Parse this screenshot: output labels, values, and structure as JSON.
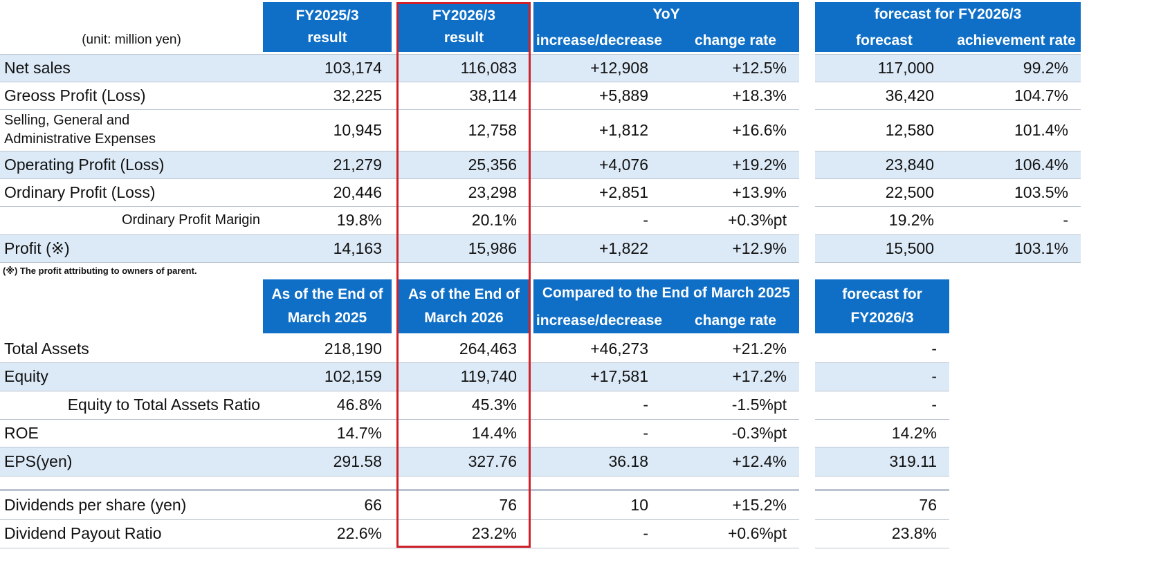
{
  "top_table": {
    "unit_label": "(unit: million yen)",
    "headers": {
      "prev_line1": "FY2025/3",
      "prev_line2": "result",
      "curr_line1": "FY2026/3",
      "curr_line2": "result",
      "yoy_title": "YoY",
      "yoy_inc": "increase/decrease",
      "yoy_rate": "change rate",
      "fc_title": "forecast for FY2026/3",
      "fc_forecast": "forecast",
      "fc_achieve": "achievement rate"
    },
    "rows": [
      {
        "label": "Net sales",
        "prev": "103,174",
        "curr": "116,083",
        "inc": "+12,908",
        "rate": "+12.5%",
        "forecast": "117,000",
        "achieve": "99.2%"
      },
      {
        "label": "Greoss Profit (Loss)",
        "prev": "32,225",
        "curr": "38,114",
        "inc": "+5,889",
        "rate": "+18.3%",
        "forecast": "36,420",
        "achieve": "104.7%"
      },
      {
        "label_line1": "Selling, General and",
        "label_line2": "Administrative Expenses",
        "prev": "10,945",
        "curr": "12,758",
        "inc": "+1,812",
        "rate": "+16.6%",
        "forecast": "12,580",
        "achieve": "101.4%"
      },
      {
        "label": "Operating Profit (Loss)",
        "prev": "21,279",
        "curr": "25,356",
        "inc": "+4,076",
        "rate": "+19.2%",
        "forecast": "23,840",
        "achieve": "106.4%"
      },
      {
        "label": "Ordinary Profit (Loss)",
        "prev": "20,446",
        "curr": "23,298",
        "inc": "+2,851",
        "rate": "+13.9%",
        "forecast": "22,500",
        "achieve": "103.5%"
      },
      {
        "label": "Ordinary Profit Marigin",
        "prev": "19.8%",
        "curr": "20.1%",
        "inc": "-",
        "rate": "+0.3%pt",
        "forecast": "19.2%",
        "achieve": "-"
      },
      {
        "label": "Profit (※)",
        "prev": "14,163",
        "curr": "15,986",
        "inc": "+1,822",
        "rate": "+12.9%",
        "forecast": "15,500",
        "achieve": "103.1%"
      }
    ],
    "footnote": "(※) The profit attributing to owners of parent."
  },
  "bottom_table": {
    "headers": {
      "prev_line1": "As of the End of",
      "prev_line2": "March 2025",
      "curr_line1": "As of the End of",
      "curr_line2": "March 2026",
      "cmp_title": "Compared to the End of March 2025",
      "cmp_inc": "increase/decrease",
      "cmp_rate": "change rate",
      "fc_line1": "forecast for",
      "fc_line2": "FY2026/3"
    },
    "rows": [
      {
        "label": "Total Assets",
        "prev": "218,190",
        "curr": "264,463",
        "inc": "+46,273",
        "rate": "+21.2%",
        "forecast": "-"
      },
      {
        "label": "Equity",
        "prev": "102,159",
        "curr": "119,740",
        "inc": "+17,581",
        "rate": "+17.2%",
        "forecast": "-"
      },
      {
        "label": "Equity to Total Assets Ratio",
        "prev": "46.8%",
        "curr": "45.3%",
        "inc": "-",
        "rate": "-1.5%pt",
        "forecast": "-"
      },
      {
        "label": "ROE",
        "prev": "14.7%",
        "curr": "14.4%",
        "inc": "-",
        "rate": "-0.3%pt",
        "forecast": "14.2%"
      },
      {
        "label": "EPS(yen)",
        "prev": "291.58",
        "curr": "327.76",
        "inc": "36.18",
        "rate": "+12.4%",
        "forecast": "319.11"
      },
      {
        "label": "Dividends per share (yen)",
        "prev": "66",
        "curr": "76",
        "inc": "10",
        "rate": "+15.2%",
        "forecast": "76"
      },
      {
        "label": "Dividend Payout Ratio",
        "prev": "22.6%",
        "curr": "23.2%",
        "inc": "-",
        "rate": "+0.6%pt",
        "forecast": "23.8%"
      }
    ]
  },
  "colors": {
    "header_blue": "#0f6fc6",
    "band_blue": "#dce9f6",
    "highlight_red": "#d0202a"
  }
}
